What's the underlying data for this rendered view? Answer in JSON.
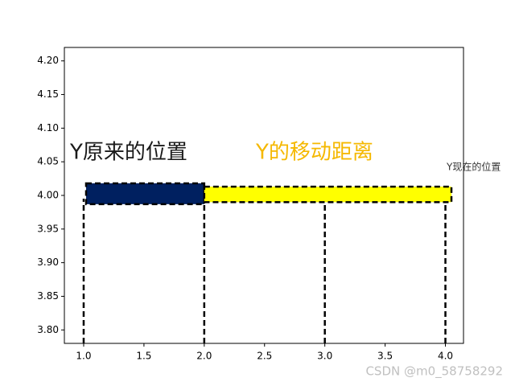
{
  "chart_data": {
    "type": "patches",
    "xlim": [
      0.84,
      4.15
    ],
    "xticks": [
      {
        "value": 1,
        "label": "1.0"
      },
      {
        "value": 1.5,
        "label": "1.5"
      },
      {
        "value": 2,
        "label": "2.0"
      },
      {
        "value": 2.5,
        "label": "2.5"
      },
      {
        "value": 3,
        "label": "3.0"
      },
      {
        "value": 3.5,
        "label": "3.5"
      },
      {
        "value": 4,
        "label": "4.0"
      }
    ],
    "ylim": [
      3.78,
      4.22
    ],
    "yticks": [
      {
        "value": 3.8,
        "label": "3.80"
      },
      {
        "value": 3.85,
        "label": "3.85"
      },
      {
        "value": 3.9,
        "label": "3.90"
      },
      {
        "value": 3.95,
        "label": "3.95"
      },
      {
        "value": 4,
        "label": "4.00"
      },
      {
        "value": 4.05,
        "label": "4.05"
      },
      {
        "value": 4.1,
        "label": "4.10"
      },
      {
        "value": 4.15,
        "label": "4.15"
      },
      {
        "value": 4.2,
        "label": "4.20"
      }
    ],
    "rects": [
      {
        "x": [
          1.02,
          2.0
        ],
        "y": [
          3.987,
          4.018
        ],
        "color": "#002060"
      },
      {
        "x": [
          2.0,
          4.05
        ],
        "y": [
          3.99,
          4.013
        ],
        "color": "#ffff00"
      }
    ],
    "vlines": {
      "x": [
        1,
        2,
        3,
        4
      ],
      "ymax": [
        3.995,
        3.987,
        3.99,
        3.99
      ]
    },
    "annotations": [
      {
        "text": "Y原来的位置",
        "color": "#1a1a1a"
      },
      {
        "text": "Y的移动距离",
        "color": "#f5b800"
      },
      {
        "text": "Y现在的位置",
        "color": "#333333"
      }
    ],
    "watermark": "CSDN @m0_58758292"
  }
}
